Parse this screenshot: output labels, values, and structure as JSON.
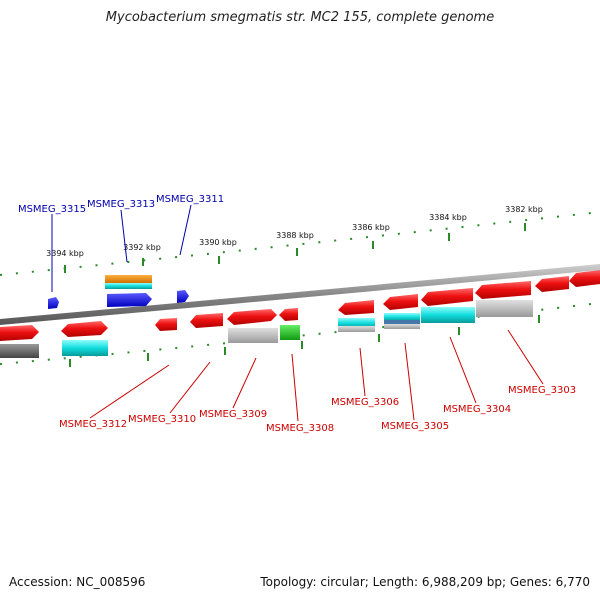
{
  "title": "Mycobacterium smegmatis str. MC2 155, complete genome",
  "accession": "Accession: NC_008596",
  "topology": "Topology: circular; Length: 6,988,209 bp; Genes: 6,770",
  "colors": {
    "backbone": "#888888",
    "ticks": "#2a8a2a",
    "red": "#ee1111",
    "orange": "#ee8800",
    "cyan": "#11dddd",
    "blue": "#1111ee",
    "green": "#22bb22",
    "grey": "#b4b4b4",
    "darkgrey": "#666666",
    "top_label": "#0000aa",
    "bottom_label": "#cc0000"
  },
  "ticks": [
    {
      "label": "3394 kbp"
    },
    {
      "label": "3392 kbp"
    },
    {
      "label": "3390 kbp"
    },
    {
      "label": "3388 kbp"
    },
    {
      "label": "3386 kbp"
    },
    {
      "label": "3384 kbp"
    },
    {
      "label": "3382 kbp"
    }
  ],
  "top_labels": [
    {
      "text": "MSMEG_3315"
    },
    {
      "text": "MSMEG_3313"
    },
    {
      "text": "MSMEG_3311"
    }
  ],
  "bottom_labels": [
    {
      "text": "MSMEG_3312"
    },
    {
      "text": "MSMEG_3310"
    },
    {
      "text": "MSMEG_3309"
    },
    {
      "text": "MSMEG_3308"
    },
    {
      "text": "MSMEG_3306"
    },
    {
      "text": "MSMEG_3305"
    },
    {
      "text": "MSMEG_3304"
    },
    {
      "text": "MSMEG_3303"
    }
  ]
}
